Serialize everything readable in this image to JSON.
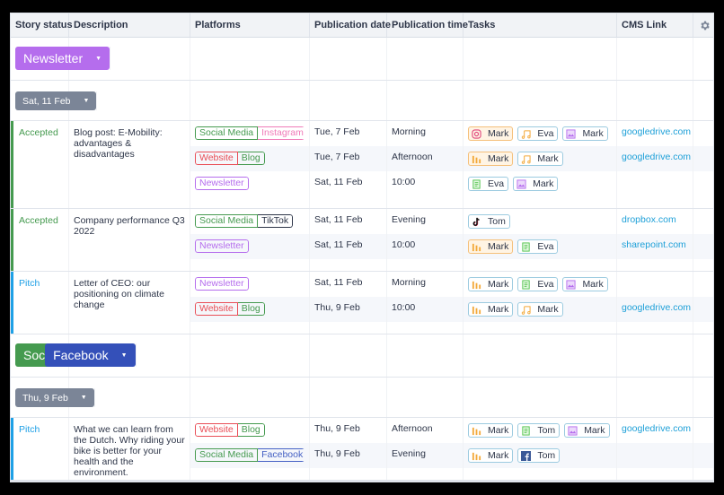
{
  "columns": [
    "Story status",
    "Description",
    "Platforms",
    "Publication date",
    "Publication time",
    "Tasks",
    "CMS Link"
  ],
  "settings_icon": "gear-icon",
  "colors": {
    "accepted": "#459a4f",
    "pitch": "#1ea0e6",
    "newsletter_pill": "#b56ded",
    "date_pill": "#7b8597",
    "social_pill": "#459a4f",
    "facebook_pill": "#3450b9",
    "link": "#1ea0d8"
  },
  "groups": [
    {
      "label": "Newsletter",
      "subgroups": [
        {
          "label": "Sat, 11 Feb",
          "stories": [
            {
              "status": "Accepted",
              "description": "Blog post: E-Mobility: advantages & disadvantages",
              "items": [
                {
                  "platforms": [
                    "Social Media",
                    "Instagram"
                  ],
                  "date": "Tue, 7 Feb",
                  "time": "Morning",
                  "tasks": [
                    {
                      "icon": "instagram-icon",
                      "name": "Mark",
                      "highlight": true
                    },
                    {
                      "icon": "music-icon",
                      "name": "Eva"
                    },
                    {
                      "icon": "image-icon",
                      "name": "Mark"
                    }
                  ],
                  "link": "googledrive.com"
                },
                {
                  "platforms": [
                    "Website",
                    "Blog"
                  ],
                  "date": "Tue, 7 Feb",
                  "time": "Afternoon",
                  "tasks": [
                    {
                      "icon": "chart-icon",
                      "name": "Mark",
                      "highlight": true
                    },
                    {
                      "icon": "music-icon",
                      "name": "Mark"
                    }
                  ],
                  "link": "googledrive.com"
                },
                {
                  "platforms": [
                    "Newsletter"
                  ],
                  "date": "Sat, 11 Feb",
                  "time": "10:00",
                  "tasks": [
                    {
                      "icon": "document-icon",
                      "name": "Eva"
                    },
                    {
                      "icon": "image-icon",
                      "name": "Mark"
                    }
                  ],
                  "link": ""
                }
              ]
            },
            {
              "status": "Accepted",
              "description": "Company performance Q3 2022",
              "items": [
                {
                  "platforms": [
                    "Social Media",
                    "TikTok"
                  ],
                  "date": "Sat, 11 Feb",
                  "time": "Evening",
                  "tasks": [
                    {
                      "icon": "tiktok-icon",
                      "name": "Tom"
                    }
                  ],
                  "link": "dropbox.com"
                },
                {
                  "platforms": [
                    "Newsletter"
                  ],
                  "date": "Sat, 11 Feb",
                  "time": "10:00",
                  "tasks": [
                    {
                      "icon": "chart-icon",
                      "name": "Mark",
                      "highlight": true
                    },
                    {
                      "icon": "document-icon",
                      "name": "Eva"
                    }
                  ],
                  "link": "sharepoint.com"
                }
              ]
            },
            {
              "status": "Pitch",
              "description": "Letter of CEO: our positioning on climate change",
              "items": [
                {
                  "platforms": [
                    "Newsletter"
                  ],
                  "date": "Sat, 11 Feb",
                  "time": "Morning",
                  "tasks": [
                    {
                      "icon": "chart-icon",
                      "name": "Mark"
                    },
                    {
                      "icon": "document-icon",
                      "name": "Eva"
                    },
                    {
                      "icon": "image-icon",
                      "name": "Mark"
                    }
                  ],
                  "link": ""
                },
                {
                  "platforms": [
                    "Website",
                    "Blog"
                  ],
                  "date": "Thu, 9 Feb",
                  "time": "10:00",
                  "tasks": [
                    {
                      "icon": "chart-icon",
                      "name": "Mark"
                    },
                    {
                      "icon": "music-icon",
                      "name": "Mark"
                    }
                  ],
                  "link": "googledrive.com"
                }
              ]
            }
          ]
        }
      ]
    },
    {
      "label_under": "Soc",
      "label": "Facebook",
      "subgroups": [
        {
          "label": "Thu, 9 Feb",
          "stories": [
            {
              "status": "Pitch",
              "description": "What we can learn from the Dutch. Why riding your bike is better for your health and the environment.",
              "items": [
                {
                  "platforms": [
                    "Website",
                    "Blog"
                  ],
                  "date": "Thu, 9 Feb",
                  "time": "Afternoon",
                  "tasks": [
                    {
                      "icon": "chart-icon",
                      "name": "Mark"
                    },
                    {
                      "icon": "document-icon",
                      "name": "Tom"
                    },
                    {
                      "icon": "image-icon",
                      "name": "Mark"
                    }
                  ],
                  "link": "googledrive.com"
                },
                {
                  "platforms": [
                    "Social Media",
                    "Facebook"
                  ],
                  "date": "Thu, 9 Feb",
                  "time": "Evening",
                  "tasks": [
                    {
                      "icon": "chart-icon",
                      "name": "Mark"
                    },
                    {
                      "icon": "facebook-icon",
                      "name": "Tom"
                    }
                  ],
                  "link": ""
                }
              ]
            }
          ]
        }
      ]
    }
  ]
}
